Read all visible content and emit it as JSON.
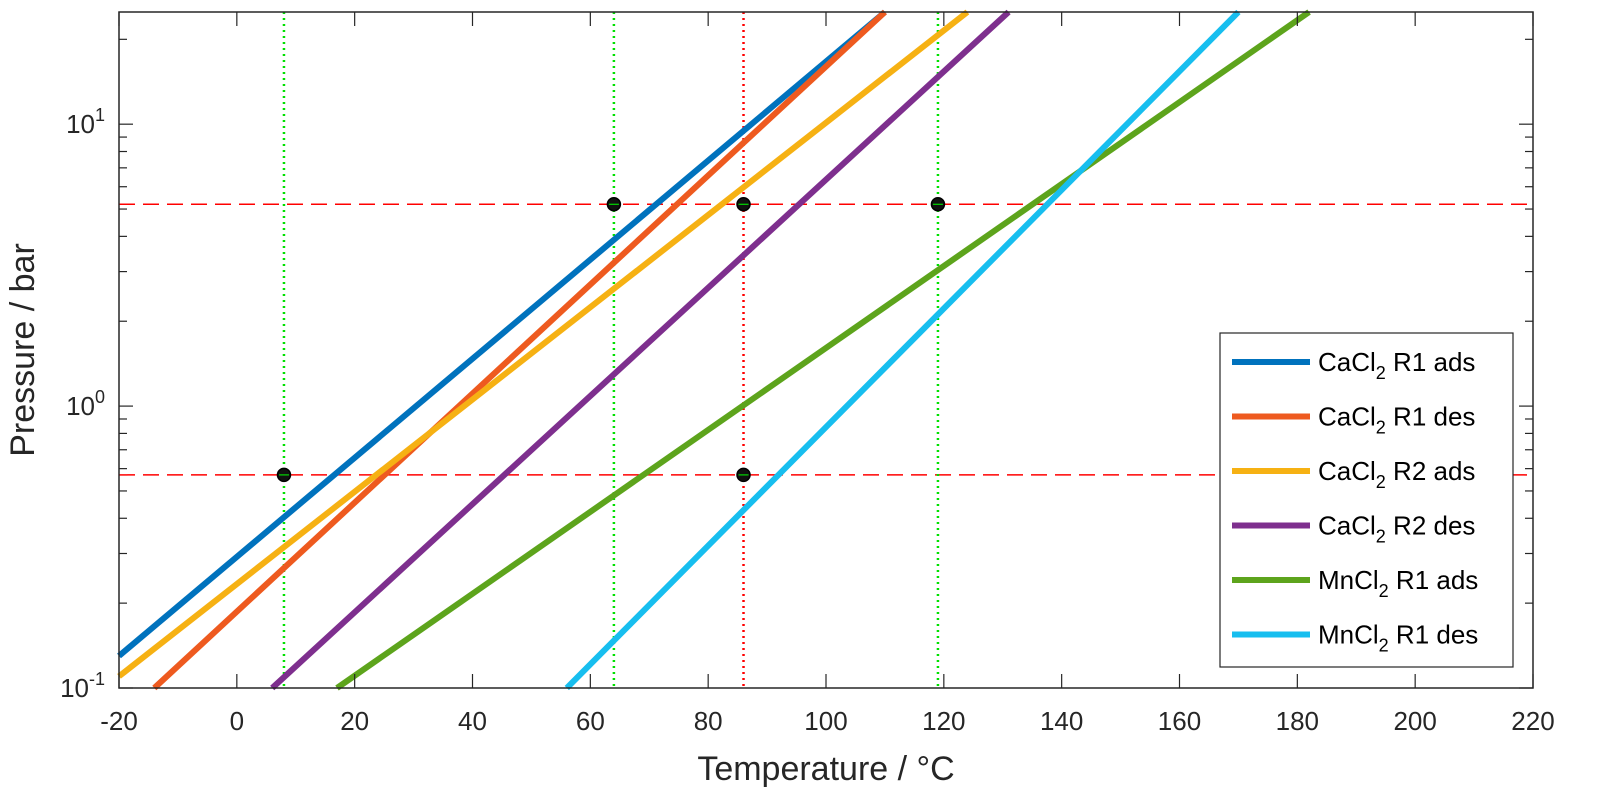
{
  "chart_data": {
    "type": "line",
    "title": "",
    "xlabel": "Temperature / °C",
    "ylabel": "Pressure / bar",
    "xlim": [
      -20,
      220
    ],
    "ylim": [
      0.1,
      25
    ],
    "yscale": "log",
    "x_ticks": [
      "-20",
      "0",
      "20",
      "40",
      "60",
      "80",
      "100",
      "120",
      "140",
      "160",
      "180",
      "200",
      "220"
    ],
    "x_tick_values": [
      -20,
      0,
      20,
      40,
      60,
      80,
      100,
      120,
      140,
      160,
      180,
      200,
      220
    ],
    "y_ticks": [
      {
        "value": 0.1,
        "base": "10",
        "exp": "-1"
      },
      {
        "value": 1,
        "base": "10",
        "exp": "0"
      },
      {
        "value": 10,
        "base": "10",
        "exp": "1"
      }
    ],
    "legend_position": "bottom-right",
    "series": [
      {
        "name": "CaCl2 R1 ads",
        "label_main": "CaCl",
        "label_sub": "2",
        "label_rest": " R1 ads",
        "color": "#0072BD",
        "points": [
          [
            -20,
            0.13
          ],
          [
            110,
            25
          ]
        ]
      },
      {
        "name": "CaCl2 R1 des",
        "label_main": "CaCl",
        "label_sub": "2",
        "label_rest": " R1 des",
        "color": "#EE5A1F",
        "points": [
          [
            -14,
            0.1
          ],
          [
            110,
            25
          ]
        ]
      },
      {
        "name": "CaCl2 R2 ads",
        "label_main": "CaCl",
        "label_sub": "2",
        "label_rest": " R2 ads",
        "color": "#F6B113",
        "points": [
          [
            -20,
            0.11
          ],
          [
            124,
            25
          ]
        ]
      },
      {
        "name": "CaCl2 R2 des",
        "label_main": "CaCl",
        "label_sub": "2",
        "label_rest": " R2 des",
        "color": "#7E2F8E",
        "points": [
          [
            6,
            0.1
          ],
          [
            131,
            25
          ]
        ]
      },
      {
        "name": "MnCl2 R1 ads",
        "label_main": "MnCl",
        "label_sub": "2",
        "label_rest": " R1 ads",
        "color": "#5DA41C",
        "points": [
          [
            17,
            0.1
          ],
          [
            182,
            25
          ]
        ]
      },
      {
        "name": "MnCl2 R1 des",
        "label_main": "MnCl",
        "label_sub": "2",
        "label_rest": " R1 des",
        "color": "#17BEEF",
        "points": [
          [
            56,
            0.1
          ],
          [
            170,
            25
          ]
        ]
      }
    ],
    "reference_lines": {
      "horizontal": [
        {
          "value": 5.2,
          "color": "#FF0000",
          "style": "dashed"
        },
        {
          "value": 0.57,
          "color": "#FF0000",
          "style": "dashed"
        }
      ],
      "vertical": [
        {
          "value": 8,
          "color": "#00E000",
          "style": "dotted"
        },
        {
          "value": 64,
          "color": "#00E000",
          "style": "dotted"
        },
        {
          "value": 86,
          "color": "#FF0000",
          "style": "dotted"
        },
        {
          "value": 119,
          "color": "#00E000",
          "style": "dotted"
        }
      ]
    },
    "markers": [
      {
        "x": 8,
        "y": 0.57
      },
      {
        "x": 64,
        "y": 5.2
      },
      {
        "x": 86,
        "y": 5.2
      },
      {
        "x": 119,
        "y": 5.2
      },
      {
        "x": 86,
        "y": 0.57
      }
    ]
  }
}
